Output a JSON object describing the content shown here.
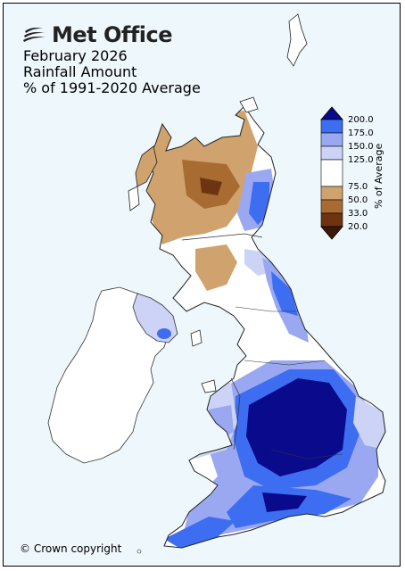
{
  "header": {
    "brand": "Met Office",
    "lines": [
      "February 2026",
      "Rainfall Amount",
      "% of 1991-2020 Average"
    ]
  },
  "legend": {
    "title": "% of Average",
    "ticks": [
      "200.0",
      "175.0",
      "150.0",
      "125.0",
      "75.0",
      "50.0",
      "33.0",
      "20.0"
    ],
    "colors": [
      "#0a0a8c",
      "#3d6ef2",
      "#9aa8f2",
      "#ccd3f6",
      "#ffffff",
      "#d0a36e",
      "#a86c32",
      "#6e3410",
      "#3c1806"
    ]
  },
  "footer": {
    "copyright": "© Crown copyright"
  }
}
